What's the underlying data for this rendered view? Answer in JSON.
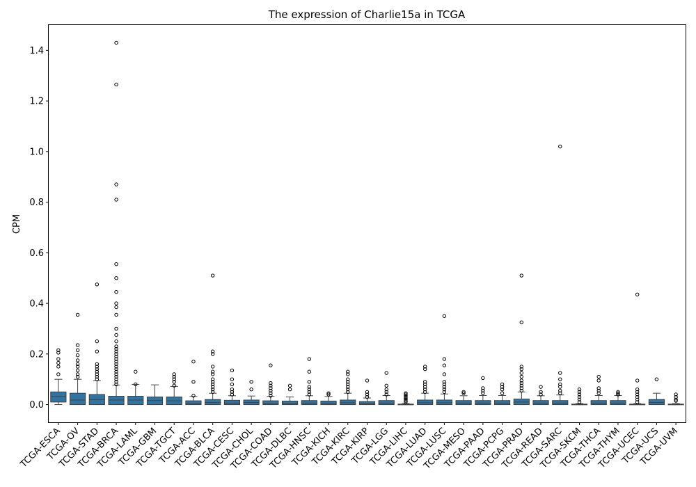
{
  "chart_data": {
    "type": "box",
    "title": "The expression of Charlie15a in TCGA",
    "xlabel": "",
    "ylabel": "CPM",
    "ylim": [
      -0.07,
      1.5
    ],
    "yticks": [
      0.0,
      0.2,
      0.4,
      0.6,
      0.8,
      1.0,
      1.2,
      1.4
    ],
    "ytick_labels": [
      "0.0",
      "0.2",
      "0.4",
      "0.6",
      "0.8",
      "1.0",
      "1.2",
      "1.4"
    ],
    "box_color": "#3274a1",
    "categories": [
      "TCGA-ESCA",
      "TCGA-OV",
      "TCGA-STAD",
      "TCGA-BRCA",
      "TCGA-LAML",
      "TCGA-GBM",
      "TCGA-TGCT",
      "TCGA-ACC",
      "TCGA-BLCA",
      "TCGA-CESC",
      "TCGA-CHOL",
      "TCGA-COAD",
      "TCGA-DLBC",
      "TCGA-HNSC",
      "TCGA-KICH",
      "TCGA-KIRC",
      "TCGA-KIRP",
      "TCGA-LGG",
      "TCGA-LIHC",
      "TCGA-LUAD",
      "TCGA-LUSC",
      "TCGA-MESO",
      "TCGA-PAAD",
      "TCGA-PCPG",
      "TCGA-PRAD",
      "TCGA-READ",
      "TCGA-SARC",
      "TCGA-SKCM",
      "TCGA-THCA",
      "TCGA-THYM",
      "TCGA-UCEC",
      "TCGA-UCS",
      "TCGA-UVM"
    ],
    "boxes": [
      {
        "whisker_low": 0.0,
        "q1": 0.01,
        "median": 0.032,
        "q3": 0.05,
        "whisker_high": 0.1,
        "outliers": [
          0.12,
          0.15,
          0.165,
          0.18,
          0.205,
          0.215
        ]
      },
      {
        "whisker_low": 0.0,
        "q1": 0.0,
        "median": 0.018,
        "q3": 0.045,
        "whisker_high": 0.1,
        "outliers": [
          0.11,
          0.12,
          0.135,
          0.15,
          0.16,
          0.175,
          0.195,
          0.215,
          0.235,
          0.355
        ]
      },
      {
        "whisker_low": 0.0,
        "q1": 0.0,
        "median": 0.02,
        "q3": 0.04,
        "whisker_high": 0.095,
        "outliers": [
          0.1,
          0.11,
          0.12,
          0.13,
          0.14,
          0.15,
          0.16,
          0.21,
          0.25,
          0.475
        ]
      },
      {
        "whisker_low": 0.0,
        "q1": 0.0,
        "median": 0.018,
        "q3": 0.033,
        "whisker_high": 0.077,
        "outliers": [
          0.08,
          0.09,
          0.1,
          0.11,
          0.12,
          0.13,
          0.14,
          0.15,
          0.16,
          0.17,
          0.18,
          0.19,
          0.2,
          0.21,
          0.22,
          0.23,
          0.25,
          0.275,
          0.3,
          0.355,
          0.385,
          0.4,
          0.445,
          0.5,
          0.555,
          0.81,
          0.87,
          1.265,
          1.43
        ]
      },
      {
        "whisker_low": 0.0,
        "q1": 0.0,
        "median": 0.018,
        "q3": 0.033,
        "whisker_high": 0.08,
        "outliers": [
          0.08,
          0.13
        ]
      },
      {
        "whisker_low": 0.0,
        "q1": 0.0,
        "median": 0.016,
        "q3": 0.03,
        "whisker_high": 0.078,
        "outliers": []
      },
      {
        "whisker_low": 0.0,
        "q1": 0.0,
        "median": 0.015,
        "q3": 0.03,
        "whisker_high": 0.072,
        "outliers": [
          0.075,
          0.09,
          0.1,
          0.11,
          0.12
        ]
      },
      {
        "whisker_low": 0.0,
        "q1": 0.0,
        "median": 0.005,
        "q3": 0.015,
        "whisker_high": 0.032,
        "outliers": [
          0.035,
          0.09,
          0.17
        ]
      },
      {
        "whisker_low": 0.0,
        "q1": 0.0,
        "median": 0.008,
        "q3": 0.02,
        "whisker_high": 0.045,
        "outliers": [
          0.05,
          0.06,
          0.07,
          0.08,
          0.09,
          0.1,
          0.12,
          0.13,
          0.15,
          0.2,
          0.21,
          0.51
        ]
      },
      {
        "whisker_low": 0.0,
        "q1": 0.0,
        "median": 0.006,
        "q3": 0.017,
        "whisker_high": 0.035,
        "outliers": [
          0.04,
          0.05,
          0.06,
          0.08,
          0.1,
          0.135
        ]
      },
      {
        "whisker_low": 0.0,
        "q1": 0.0,
        "median": 0.008,
        "q3": 0.018,
        "whisker_high": 0.034,
        "outliers": [
          0.06,
          0.09
        ]
      },
      {
        "whisker_low": 0.0,
        "q1": 0.0,
        "median": 0.005,
        "q3": 0.015,
        "whisker_high": 0.033,
        "outliers": [
          0.035,
          0.045,
          0.055,
          0.065,
          0.075,
          0.085,
          0.155
        ]
      },
      {
        "whisker_low": 0.0,
        "q1": 0.0,
        "median": 0.005,
        "q3": 0.014,
        "whisker_high": 0.03,
        "outliers": [
          0.06,
          0.075
        ]
      },
      {
        "whisker_low": 0.0,
        "q1": 0.0,
        "median": 0.006,
        "q3": 0.016,
        "whisker_high": 0.035,
        "outliers": [
          0.04,
          0.05,
          0.06,
          0.07,
          0.09,
          0.13,
          0.18
        ]
      },
      {
        "whisker_low": 0.0,
        "q1": 0.0,
        "median": 0.004,
        "q3": 0.014,
        "whisker_high": 0.032,
        "outliers": [
          0.04,
          0.045
        ]
      },
      {
        "whisker_low": 0.0,
        "q1": 0.0,
        "median": 0.007,
        "q3": 0.018,
        "whisker_high": 0.045,
        "outliers": [
          0.05,
          0.06,
          0.07,
          0.08,
          0.09,
          0.1,
          0.12,
          0.13
        ]
      },
      {
        "whisker_low": 0.0,
        "q1": 0.0,
        "median": 0.004,
        "q3": 0.012,
        "whisker_high": 0.026,
        "outliers": [
          0.03,
          0.04,
          0.05,
          0.095
        ]
      },
      {
        "whisker_low": 0.0,
        "q1": 0.0,
        "median": 0.006,
        "q3": 0.016,
        "whisker_high": 0.036,
        "outliers": [
          0.04,
          0.05,
          0.06,
          0.075,
          0.125
        ]
      },
      {
        "whisker_low": 0.0,
        "q1": 0.0,
        "median": 0.0,
        "q3": 0.002,
        "whisker_high": 0.004,
        "outliers": [
          0.01,
          0.015,
          0.02,
          0.025,
          0.03,
          0.035,
          0.04,
          0.045
        ]
      },
      {
        "whisker_low": 0.0,
        "q1": 0.0,
        "median": 0.007,
        "q3": 0.018,
        "whisker_high": 0.045,
        "outliers": [
          0.05,
          0.06,
          0.07,
          0.08,
          0.09,
          0.14,
          0.15
        ]
      },
      {
        "whisker_low": 0.0,
        "q1": 0.0,
        "median": 0.007,
        "q3": 0.018,
        "whisker_high": 0.042,
        "outliers": [
          0.05,
          0.06,
          0.07,
          0.08,
          0.09,
          0.12,
          0.155,
          0.18,
          0.35
        ]
      },
      {
        "whisker_low": 0.0,
        "q1": 0.0,
        "median": 0.006,
        "q3": 0.016,
        "whisker_high": 0.035,
        "outliers": [
          0.045,
          0.05
        ]
      },
      {
        "whisker_low": 0.0,
        "q1": 0.0,
        "median": 0.006,
        "q3": 0.016,
        "whisker_high": 0.036,
        "outliers": [
          0.045,
          0.055,
          0.065,
          0.105
        ]
      },
      {
        "whisker_low": 0.0,
        "q1": 0.0,
        "median": 0.006,
        "q3": 0.016,
        "whisker_high": 0.036,
        "outliers": [
          0.045,
          0.06,
          0.07,
          0.08
        ]
      },
      {
        "whisker_low": 0.0,
        "q1": 0.0,
        "median": 0.01,
        "q3": 0.022,
        "whisker_high": 0.05,
        "outliers": [
          0.055,
          0.065,
          0.075,
          0.085,
          0.095,
          0.11,
          0.125,
          0.14,
          0.15,
          0.325,
          0.51
        ]
      },
      {
        "whisker_low": 0.0,
        "q1": 0.0,
        "median": 0.006,
        "q3": 0.016,
        "whisker_high": 0.035,
        "outliers": [
          0.04,
          0.05,
          0.07
        ]
      },
      {
        "whisker_low": 0.0,
        "q1": 0.0,
        "median": 0.006,
        "q3": 0.016,
        "whisker_high": 0.038,
        "outliers": [
          0.045,
          0.055,
          0.07,
          0.08,
          0.1,
          0.125,
          1.02
        ]
      },
      {
        "whisker_low": 0.0,
        "q1": 0.0,
        "median": 0.0,
        "q3": 0.002,
        "whisker_high": 0.004,
        "outliers": [
          0.01,
          0.02,
          0.03,
          0.04,
          0.05,
          0.06
        ]
      },
      {
        "whisker_low": 0.0,
        "q1": 0.0,
        "median": 0.006,
        "q3": 0.016,
        "whisker_high": 0.036,
        "outliers": [
          0.045,
          0.055,
          0.065,
          0.095,
          0.11
        ]
      },
      {
        "whisker_low": 0.0,
        "q1": 0.0,
        "median": 0.006,
        "q3": 0.016,
        "whisker_high": 0.036,
        "outliers": [
          0.04,
          0.045,
          0.05
        ]
      },
      {
        "whisker_low": 0.0,
        "q1": 0.0,
        "median": 0.0,
        "q3": 0.002,
        "whisker_high": 0.004,
        "outliers": [
          0.01,
          0.02,
          0.03,
          0.04,
          0.05,
          0.06,
          0.095,
          0.435
        ]
      },
      {
        "whisker_low": 0.0,
        "q1": 0.0,
        "median": 0.008,
        "q3": 0.02,
        "whisker_high": 0.045,
        "outliers": [
          0.1
        ]
      },
      {
        "whisker_low": 0.0,
        "q1": 0.0,
        "median": 0.0,
        "q3": 0.002,
        "whisker_high": 0.004,
        "outliers": [
          0.015,
          0.02,
          0.03,
          0.04
        ]
      }
    ]
  }
}
